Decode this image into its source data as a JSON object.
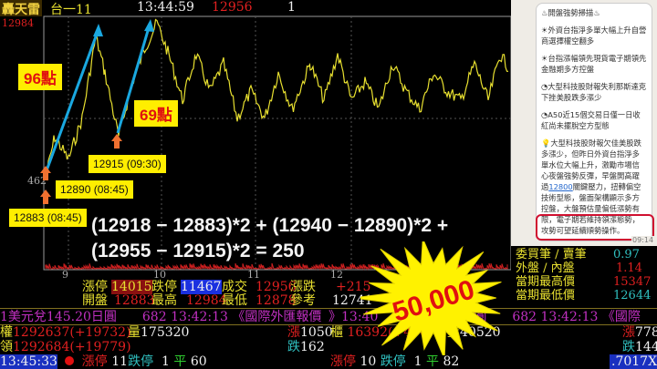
{
  "header": {
    "app_name": "轟天雷",
    "symbol": "台一11",
    "time": "13:44:59",
    "price": "12956",
    "qty": "1"
  },
  "chart": {
    "y_high_label": "12984",
    "y_side_label": "462",
    "x_ticks": [
      "9",
      "10",
      "11",
      "12"
    ],
    "annotations": {
      "points_a": "96點",
      "points_b": "69點",
      "label_a": "12883 (08:45)",
      "label_b": "12890 (08:45)",
      "label_c": "12915 (09:30)"
    },
    "formula_line1": "(12918 − 12883)*2 + (12940 − 12890)*2 +",
    "formula_line2": "(12955 − 12915)*2 = 250"
  },
  "panel": {
    "title": "♨開盤強勢掃描♨",
    "items": [
      "☀外資台指淨多單大幅上升自營商選擇權空翻多",
      "☀台指漲幅領先現貨電子期領先金融期多方控盤",
      "◔大型科技股財報失利那斯達克下挫美股跌多漲少",
      "◔A50近15個交易日僅一日收紅尚未擺脫空方型態"
    ],
    "last_item_pre": "💡大型科技股財報欠佳美股跌多漲少，但昨日外資台指淨多單水位大幅上升，激勵市場信心夜盤強勢反彈，早盤開高躍過",
    "last_item_link": "12800",
    "last_item_post": "關鍵壓力，扭轉偏空技術型態，盤面架構顯示多方控盤，大盤預估量偏低漲勢有限，電子期若維持領漲態勢，攻勢可望延續順勢操作。",
    "time": "09:14"
  },
  "stats": [
    {
      "label": "委買筆 / 賣筆",
      "value": "0.97"
    },
    {
      "label": "外盤 / 內盤",
      "value": "1.14"
    },
    {
      "label": "當期最高價",
      "value": "15347"
    },
    {
      "label": "當期最低價",
      "value": "12644"
    }
  ],
  "quote": {
    "limit_up_label": "漲停",
    "limit_up": "14015",
    "limit_down_label": "跌停",
    "limit_down": "11467",
    "trade_label": "成交",
    "trade": "12956",
    "change_label": "漲跌",
    "open_label": "開盤",
    "open": "12883",
    "high_label": "最高",
    "high": "12984",
    "low_label": "最低",
    "low": "12878",
    "ref_label": "參考",
    "change": "+215",
    "ref": "12741"
  },
  "ticker": {
    "left": "1美元兌145.20日圓　　682 13:42:13 《國際外匯報價",
    "right": "》13:40　　　145.20日圓　　682 13:42:13 《國際"
  },
  "market": {
    "twse_label": "權",
    "twse": "1292637",
    "twse_chg": "(+19732)",
    "vol_label": "量",
    "vol": "175320",
    "up_label": "漲",
    "up": "1050",
    "lead_label": "領",
    "lead": "1292684",
    "lead_chg": "(+19779)",
    "down_label": "跌",
    "down": "162",
    "otc_label": "櫃",
    "otc": "16392",
    "otc_chg": "(+470)",
    "otc_vol": "40520",
    "otc_up": "778",
    "otc_down": "144",
    "time": "13:45:33",
    "lu": "漲停",
    "lu_n": "11",
    "ld": "跌停",
    "ld_n": "1",
    "flat": "平",
    "flat_n": "60",
    "otc_lu_n": "10",
    "otc_ld_n": "1",
    "otc_flat_n": "82",
    "ratio": ".7017X"
  },
  "burst": "50,000",
  "colors": {
    "price_line": "#e8e030",
    "arrow": "#1aa8e0",
    "label_bg": "#ffee00",
    "burst": "#fff200"
  }
}
